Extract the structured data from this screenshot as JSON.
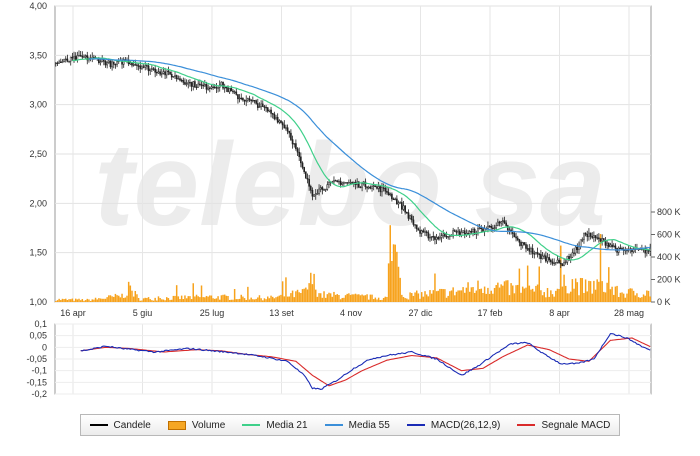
{
  "chart_data": {
    "type": "candlestick",
    "watermark": "telebo sa",
    "x_ticks": [
      "16 apr",
      "5 giu",
      "25 lug",
      "13 set",
      "4 nov",
      "27 dic",
      "17 feb",
      "8 apr",
      "28 mag"
    ],
    "price_axis": {
      "ylim": [
        1.0,
        4.0
      ],
      "ticks": [
        "4,00",
        "3,50",
        "3,00",
        "2,50",
        "2,00",
        "1,50",
        "1,00"
      ]
    },
    "volume_axis": {
      "ylim": [
        0,
        800000
      ],
      "ticks": [
        "800 K",
        "600 K",
        "400 K",
        "200 K",
        "0 K"
      ]
    },
    "macd_axis": {
      "ylim": [
        -0.2,
        0.1
      ],
      "ticks": [
        "0,1",
        "0,05",
        "0",
        "-0,05",
        "-0,1",
        "-0,15",
        "-0,2"
      ]
    },
    "price_keypoints": [
      [
        0,
        3.42
      ],
      [
        8,
        3.45
      ],
      [
        15,
        3.48
      ],
      [
        25,
        3.46
      ],
      [
        35,
        3.4
      ],
      [
        42,
        3.45
      ],
      [
        50,
        3.4
      ],
      [
        60,
        3.35
      ],
      [
        70,
        3.3
      ],
      [
        80,
        3.22
      ],
      [
        90,
        3.18
      ],
      [
        100,
        3.2
      ],
      [
        110,
        3.08
      ],
      [
        120,
        3.02
      ],
      [
        130,
        2.92
      ],
      [
        140,
        2.75
      ],
      [
        145,
        2.55
      ],
      [
        150,
        2.3
      ],
      [
        155,
        2.1
      ],
      [
        160,
        2.15
      ],
      [
        170,
        2.22
      ],
      [
        180,
        2.2
      ],
      [
        190,
        2.18
      ],
      [
        200,
        2.12
      ],
      [
        210,
        1.95
      ],
      [
        220,
        1.7
      ],
      [
        230,
        1.65
      ],
      [
        240,
        1.7
      ],
      [
        250,
        1.7
      ],
      [
        260,
        1.75
      ],
      [
        270,
        1.8
      ],
      [
        280,
        1.6
      ],
      [
        285,
        1.55
      ],
      [
        290,
        1.48
      ],
      [
        300,
        1.42
      ],
      [
        305,
        1.38
      ],
      [
        310,
        1.45
      ],
      [
        315,
        1.55
      ],
      [
        320,
        1.7
      ],
      [
        325,
        1.65
      ],
      [
        330,
        1.62
      ],
      [
        335,
        1.58
      ],
      [
        340,
        1.52
      ]
    ],
    "volume_keypoints": [
      [
        0,
        25000
      ],
      [
        20,
        20000
      ],
      [
        40,
        60000
      ],
      [
        45,
        140000
      ],
      [
        50,
        30000
      ],
      [
        90,
        50000
      ],
      [
        130,
        40000
      ],
      [
        150,
        90000
      ],
      [
        155,
        220000
      ],
      [
        160,
        70000
      ],
      [
        200,
        40000
      ],
      [
        205,
        510000
      ],
      [
        210,
        60000
      ],
      [
        240,
        100000
      ],
      [
        260,
        160000
      ],
      [
        280,
        120000
      ],
      [
        300,
        100000
      ],
      [
        310,
        200000
      ],
      [
        320,
        140000
      ],
      [
        330,
        180000
      ],
      [
        340,
        90000
      ]
    ],
    "macd_keypoints": [
      [
        0,
        -0.015
      ],
      [
        10,
        -0.02
      ],
      [
        20,
        -0.01
      ],
      [
        30,
        0.005
      ],
      [
        40,
        -0.005
      ],
      [
        60,
        -0.02
      ],
      [
        80,
        -0.005
      ],
      [
        95,
        -0.015
      ],
      [
        110,
        -0.025
      ],
      [
        125,
        -0.04
      ],
      [
        140,
        -0.06
      ],
      [
        150,
        -0.12
      ],
      [
        155,
        -0.175
      ],
      [
        160,
        -0.18
      ],
      [
        170,
        -0.14
      ],
      [
        180,
        -0.09
      ],
      [
        190,
        -0.05
      ],
      [
        200,
        -0.035
      ],
      [
        215,
        -0.02
      ],
      [
        230,
        -0.05
      ],
      [
        245,
        -0.12
      ],
      [
        255,
        -0.08
      ],
      [
        265,
        -0.03
      ],
      [
        275,
        0.015
      ],
      [
        285,
        0.02
      ],
      [
        295,
        -0.03
      ],
      [
        305,
        -0.07
      ],
      [
        315,
        -0.07
      ],
      [
        325,
        -0.05
      ],
      [
        335,
        0.06
      ],
      [
        345,
        0.04
      ],
      [
        355,
        0.0
      ],
      [
        360,
        -0.015
      ]
    ],
    "signal_keypoints": [
      [
        0,
        -0.02
      ],
      [
        15,
        -0.015
      ],
      [
        30,
        0.0
      ],
      [
        45,
        -0.005
      ],
      [
        65,
        -0.02
      ],
      [
        85,
        -0.01
      ],
      [
        100,
        -0.015
      ],
      [
        115,
        -0.03
      ],
      [
        130,
        -0.04
      ],
      [
        145,
        -0.06
      ],
      [
        155,
        -0.12
      ],
      [
        165,
        -0.165
      ],
      [
        175,
        -0.14
      ],
      [
        185,
        -0.1
      ],
      [
        200,
        -0.055
      ],
      [
        215,
        -0.035
      ],
      [
        230,
        -0.045
      ],
      [
        245,
        -0.1
      ],
      [
        258,
        -0.09
      ],
      [
        270,
        -0.04
      ],
      [
        285,
        0.01
      ],
      [
        298,
        -0.01
      ],
      [
        310,
        -0.05
      ],
      [
        322,
        -0.06
      ],
      [
        335,
        0.03
      ],
      [
        348,
        0.04
      ],
      [
        360,
        0.0
      ]
    ],
    "legend": [
      {
        "name": "Candele",
        "color": "#000000",
        "style": "line"
      },
      {
        "name": "Volume",
        "color": "#f5a623",
        "style": "box"
      },
      {
        "name": "Media 21",
        "color": "#3fd08a",
        "style": "line"
      },
      {
        "name": "Media 55",
        "color": "#3b8fd9",
        "style": "line"
      },
      {
        "name": "MACD(26,12,9)",
        "color": "#1a2bb5",
        "style": "line"
      },
      {
        "name": "Segnale MACD",
        "color": "#d92b2b",
        "style": "line"
      }
    ]
  }
}
